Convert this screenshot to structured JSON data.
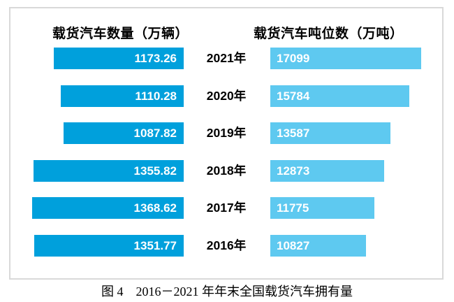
{
  "chart_data": {
    "type": "bar",
    "layout": "tornado-horizontal",
    "title": "图 4　2016－2021 年年末全国载货汽车拥有量",
    "categories": [
      "2021年",
      "2020年",
      "2019年",
      "2018年",
      "2017年",
      "2016年"
    ],
    "series": [
      {
        "name": "载货汽车数量（万辆）",
        "side": "left",
        "values": [
          1173.26,
          1110.28,
          1087.82,
          1355.82,
          1368.62,
          1351.77
        ]
      },
      {
        "name": "载货汽车吨位数（万吨）",
        "side": "right",
        "values": [
          17099,
          15784,
          13587,
          12873,
          11775,
          10827
        ]
      }
    ],
    "value_labels_shown": true,
    "legend_position": "column-headers-above-bars",
    "grid": false,
    "axis_ticks": "none"
  },
  "colors": {
    "left_bar": "#00a0dc",
    "right_bar": "#5ec9f0",
    "bar_text": "#ffffff",
    "panel_border": "#d9d9d9",
    "text": "#000000",
    "background": "#ffffff"
  }
}
